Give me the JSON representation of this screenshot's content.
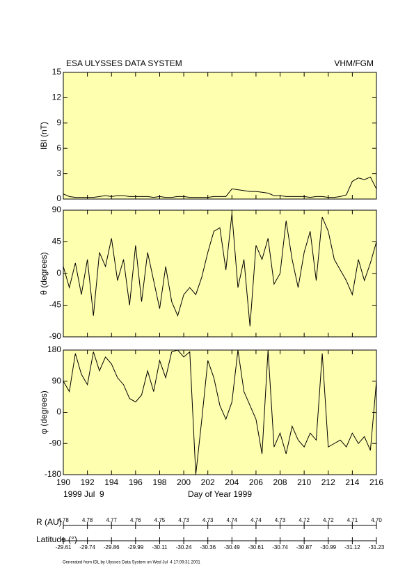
{
  "header": {
    "title": "ESA ULYSSES DATA SYSTEM",
    "instrument": "VHM/FGM",
    "date": "1999 Jul  9"
  },
  "chart_data": [
    {
      "type": "line",
      "ylabel": "IBI (nT)",
      "color": "#000000",
      "x": [
        190,
        190.5,
        191,
        191.5,
        192,
        192.5,
        193,
        193.5,
        194,
        194.5,
        195,
        195.5,
        196,
        196.5,
        197,
        197.5,
        198,
        198.5,
        199,
        199.5,
        200,
        200.5,
        201,
        201.5,
        202,
        202.5,
        203,
        203.5,
        204,
        204.5,
        205,
        205.5,
        206,
        206.5,
        207,
        207.5,
        208,
        208.5,
        209,
        209.5,
        210,
        210.5,
        211,
        211.5,
        212,
        212.5,
        213,
        213.5,
        214,
        214.5,
        215,
        215.5,
        216
      ],
      "values": [
        0.6,
        0.3,
        0.2,
        0.2,
        0.2,
        0.2,
        0.3,
        0.4,
        0.3,
        0.4,
        0.4,
        0.3,
        0.3,
        0.3,
        0.3,
        0.2,
        0.3,
        0.2,
        0.2,
        0.3,
        0.3,
        0.2,
        0.2,
        0.2,
        0.2,
        0.3,
        0.3,
        0.3,
        1.2,
        1.1,
        1.0,
        0.9,
        0.9,
        0.8,
        0.7,
        0.4,
        0.4,
        0.3,
        0.3,
        0.3,
        0.3,
        0.2,
        0.3,
        0.3,
        0.2,
        0.2,
        0.3,
        0.5,
        2.1,
        2.5,
        2.3,
        2.6,
        1.2
      ],
      "xlim": [
        190,
        216
      ],
      "ylim": [
        0,
        15
      ],
      "yticks": [
        0,
        3,
        6,
        9,
        12,
        15
      ]
    },
    {
      "type": "line",
      "ylabel": "θ (degrees)",
      "color": "#000000",
      "x": [
        190,
        190.5,
        191,
        191.5,
        192,
        192.5,
        193,
        193.5,
        194,
        194.5,
        195,
        195.5,
        196,
        196.5,
        197,
        197.5,
        198,
        198.5,
        199,
        199.5,
        200,
        200.5,
        201,
        201.5,
        202,
        202.5,
        203,
        203.5,
        204,
        204.5,
        205,
        205.5,
        206,
        206.5,
        207,
        207.5,
        208,
        208.5,
        209,
        209.5,
        210,
        210.5,
        211,
        211.5,
        212,
        212.5,
        213,
        213.5,
        214,
        214.5,
        215,
        215.5,
        216
      ],
      "values": [
        10,
        -20,
        15,
        -30,
        20,
        -60,
        30,
        10,
        50,
        -10,
        20,
        -45,
        40,
        -40,
        30,
        -10,
        -50,
        10,
        -40,
        -60,
        -30,
        -20,
        -30,
        -5,
        30,
        60,
        65,
        5,
        85,
        -20,
        20,
        -75,
        40,
        20,
        50,
        -15,
        0,
        75,
        20,
        -20,
        30,
        60,
        -10,
        80,
        60,
        20,
        5,
        -10,
        -30,
        20,
        -10,
        15,
        45
      ],
      "xlim": [
        190,
        216
      ],
      "ylim": [
        -90,
        90
      ],
      "yticks": [
        -90,
        -45,
        0,
        45,
        90
      ]
    },
    {
      "type": "line",
      "ylabel": "φ (degrees)",
      "xlabel": "Day of Year 1999",
      "color": "#000000",
      "x": [
        190,
        190.5,
        191,
        191.5,
        192,
        192.5,
        193,
        193.5,
        194,
        194.5,
        195,
        195.5,
        196,
        196.5,
        197,
        197.5,
        198,
        198.5,
        199,
        199.5,
        200,
        200.5,
        201,
        201.5,
        202,
        202.5,
        203,
        203.5,
        204,
        204.5,
        205,
        205.5,
        206,
        206.5,
        207,
        207.5,
        208,
        208.5,
        209,
        209.5,
        210,
        210.5,
        211,
        211.5,
        212,
        212.5,
        213,
        213.5,
        214,
        214.5,
        215,
        215.5,
        216
      ],
      "values": [
        90,
        60,
        170,
        110,
        80,
        175,
        120,
        160,
        140,
        100,
        80,
        40,
        30,
        50,
        120,
        60,
        150,
        100,
        175,
        180,
        160,
        175,
        -180,
        -20,
        150,
        100,
        20,
        -20,
        30,
        180,
        60,
        20,
        -20,
        -120,
        180,
        -100,
        -60,
        -120,
        -40,
        -80,
        -100,
        -60,
        -80,
        170,
        -100,
        -90,
        -80,
        -100,
        -60,
        -90,
        -70,
        -110,
        90
      ],
      "xlim": [
        190,
        216
      ],
      "ylim": [
        -180,
        180
      ],
      "yticks": [
        -180,
        -90,
        0,
        90,
        180
      ],
      "xticks": [
        190,
        192,
        194,
        196,
        198,
        200,
        202,
        204,
        206,
        208,
        210,
        212,
        214,
        216
      ]
    }
  ],
  "r_au": {
    "label": "R (AU)",
    "values": [
      "4.78",
      "4.78",
      "4.77",
      "4.76",
      "4.75",
      "4.73",
      "4.73",
      "4.74",
      "4.74",
      "4.73",
      "4.72",
      "4.72",
      "4.71",
      "4.70"
    ]
  },
  "latitude": {
    "label": "Latitude (°)",
    "values": [
      "-29.61",
      "-29.74",
      "-29.86",
      "-29.99",
      "-30.11",
      "-30.24",
      "-30.36",
      "-30.49",
      "-30.61",
      "-30.74",
      "-30.87",
      "-30.99",
      "-31.12",
      "-31.23"
    ]
  },
  "footer": "Generated from IDL by Ulysses Data System on Wed Jul  4 17:09:31 2001"
}
